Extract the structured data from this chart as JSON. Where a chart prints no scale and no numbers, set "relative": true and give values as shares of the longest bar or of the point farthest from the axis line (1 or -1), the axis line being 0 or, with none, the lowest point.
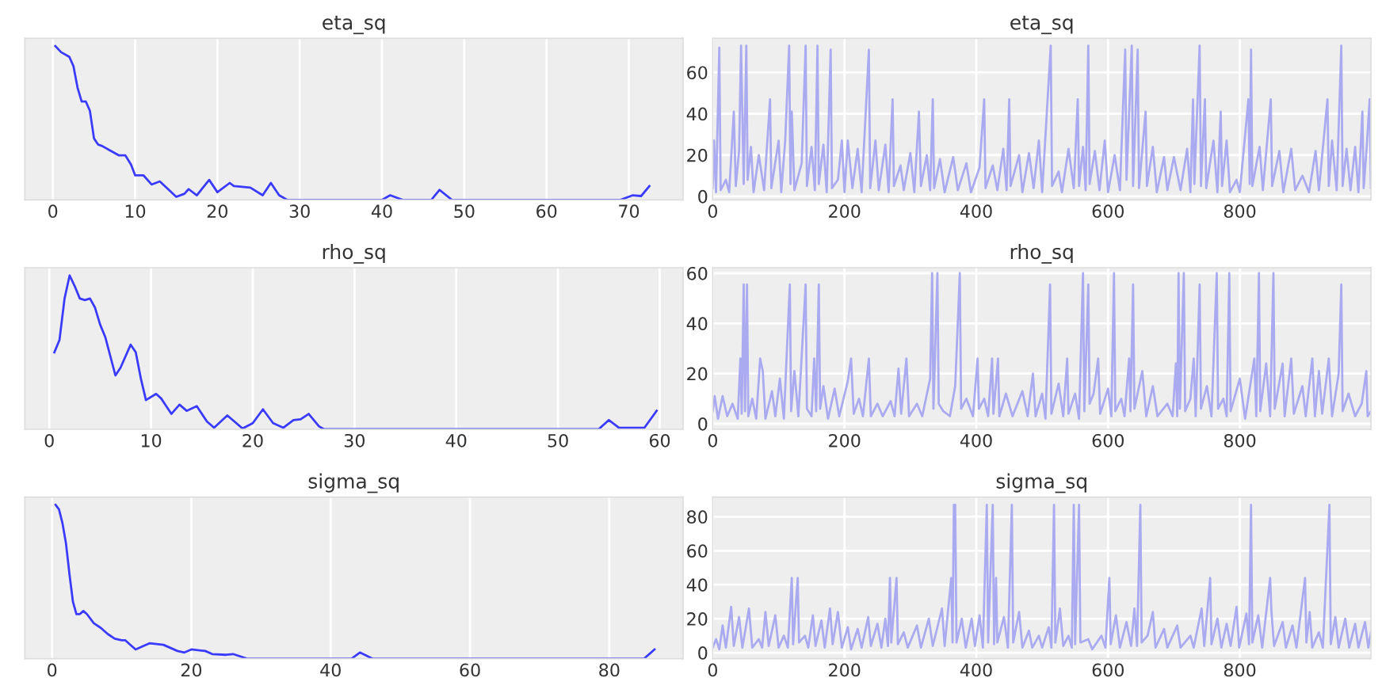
{
  "chart_data": [
    {
      "type": "line",
      "title": "eta_sq",
      "relative": true,
      "tick_labels": "x",
      "grid": "x",
      "xlim": [
        -3.4,
        76.6
      ],
      "xticks": [
        0,
        10,
        20,
        30,
        40,
        50,
        60,
        70
      ],
      "series": [
        {
          "color": "#3b3bff",
          "x": [
            0.3,
            1,
            2,
            2.5,
            3,
            3.5,
            4,
            4.5,
            5,
            5.5,
            6,
            7,
            8,
            8.8,
            9.5,
            10,
            11,
            12,
            13,
            14,
            15,
            16,
            16.5,
            17.5,
            19,
            20,
            21.5,
            22,
            24,
            25.5,
            26.5,
            27.5,
            28.5,
            40,
            41,
            42.5,
            46,
            47,
            48.5,
            69,
            70.5,
            71.5,
            72.5
          ],
          "values": [
            1.0,
            0.96,
            0.93,
            0.87,
            0.73,
            0.64,
            0.64,
            0.58,
            0.4,
            0.36,
            0.35,
            0.32,
            0.29,
            0.29,
            0.23,
            0.16,
            0.16,
            0.1,
            0.12,
            0.07,
            0.02,
            0.04,
            0.07,
            0.03,
            0.13,
            0.05,
            0.11,
            0.09,
            0.08,
            0.03,
            0.11,
            0.03,
            0,
            0,
            0.03,
            0,
            0,
            0.065,
            0,
            0,
            0.03,
            0.025,
            0.09
          ]
        }
      ]
    },
    {
      "type": "line",
      "title": "eta_sq",
      "grid": true,
      "xlim": [
        0,
        999
      ],
      "xticks": [
        0,
        200,
        400,
        600,
        800
      ],
      "ylim": [
        -1.7,
        76.5
      ],
      "yticks": [
        0,
        20,
        40,
        60
      ],
      "series": [
        {
          "color": "#aaaaf0",
          "x": [
            0,
            2,
            5,
            10,
            12,
            20,
            25,
            32,
            35,
            40,
            43,
            47,
            51,
            53,
            58,
            62,
            70,
            78,
            87,
            89,
            100,
            104,
            110,
            116,
            118,
            120,
            124,
            135,
            141,
            143,
            150,
            155,
            159,
            161,
            168,
            173,
            179,
            181,
            190,
            196,
            200,
            205,
            212,
            220,
            226,
            237,
            239,
            247,
            252,
            262,
            267,
            273,
            275,
            285,
            290,
            300,
            306,
            313,
            316,
            325,
            330,
            334,
            336,
            345,
            352,
            365,
            372,
            385,
            392,
            405,
            412,
            414,
            425,
            432,
            441,
            446,
            450,
            452,
            465,
            470,
            480,
            487,
            495,
            500,
            513,
            515,
            525,
            530,
            540,
            548,
            554,
            556,
            562,
            566,
            570,
            572,
            580,
            587,
            595,
            600,
            610,
            618,
            626,
            628,
            636,
            638,
            645,
            647,
            657,
            659,
            668,
            674,
            685,
            690,
            700,
            710,
            720,
            725,
            729,
            731,
            739,
            741,
            747,
            749,
            760,
            766,
            771,
            773,
            780,
            785,
            795,
            800,
            813,
            815,
            817,
            819,
            830,
            835,
            847,
            849,
            860,
            866,
            878,
            884,
            895,
            905,
            915,
            920,
            933,
            935,
            940,
            947,
            954,
            956,
            962,
            968,
            975,
            980,
            986,
            988,
            993,
            997,
            999
          ],
          "values": [
            4,
            27,
            2,
            72,
            3,
            8,
            2,
            41,
            5,
            22,
            73,
            6,
            73,
            8,
            24,
            2,
            20,
            3,
            47,
            4,
            27,
            2,
            27,
            73,
            6,
            41,
            3,
            16,
            73,
            5,
            24,
            3,
            73,
            6,
            25,
            2,
            71,
            4,
            8,
            27,
            2,
            27,
            4,
            23,
            2,
            71,
            4,
            27,
            3,
            25,
            2,
            47,
            5,
            15,
            3,
            21,
            2,
            41,
            5,
            20,
            3,
            47,
            4,
            18,
            2,
            19,
            3,
            16,
            2,
            14,
            47,
            4,
            15,
            3,
            23,
            3,
            47,
            5,
            20,
            2,
            21,
            4,
            27,
            2,
            73,
            5,
            12,
            2,
            23,
            4,
            47,
            5,
            24,
            3,
            73,
            6,
            22,
            3,
            27,
            2,
            20,
            3,
            71,
            8,
            73,
            5,
            71,
            4,
            41,
            5,
            24,
            2,
            19,
            3,
            19,
            3,
            23,
            2,
            47,
            6,
            73,
            5,
            47,
            4,
            27,
            2,
            41,
            5,
            27,
            2,
            8,
            2,
            47,
            6,
            71,
            5,
            24,
            3,
            47,
            5,
            22,
            2,
            23,
            3,
            10,
            2,
            22,
            3,
            47,
            5,
            27,
            3,
            73,
            5,
            23,
            3,
            24,
            2,
            41,
            4,
            26,
            47,
            4
          ]
        }
      ]
    },
    {
      "type": "line",
      "title": "rho_sq",
      "relative": true,
      "tick_labels": "x",
      "grid": "x",
      "xlim": [
        -2.4,
        62.3
      ],
      "xticks": [
        0,
        10,
        20,
        30,
        40,
        50,
        60
      ],
      "series": [
        {
          "color": "#3b3bff",
          "x": [
            0.5,
            1,
            1.5,
            2,
            2.5,
            3,
            3.5,
            4,
            4.5,
            5,
            5.5,
            6.5,
            7,
            8,
            8.5,
            9,
            9.5,
            10.5,
            11,
            12,
            12.8,
            13.5,
            14.5,
            15.5,
            16.2,
            17.5,
            18.2,
            19,
            20,
            21,
            22,
            23,
            24,
            24.7,
            25.5,
            26.5,
            27,
            54,
            55,
            56,
            58.5,
            59.7
          ],
          "values": [
            0.5,
            0.58,
            0.85,
            1.0,
            0.93,
            0.85,
            0.84,
            0.85,
            0.79,
            0.68,
            0.6,
            0.35,
            0.4,
            0.55,
            0.5,
            0.33,
            0.19,
            0.23,
            0.2,
            0.1,
            0.16,
            0.12,
            0.15,
            0.05,
            0.01,
            0.09,
            0.05,
            0.005,
            0.04,
            0.13,
            0.04,
            0.01,
            0.06,
            0.065,
            0.1,
            0.02,
            0,
            0,
            0.06,
            0.01,
            0.01,
            0.12
          ]
        }
      ]
    },
    {
      "type": "line",
      "title": "rho_sq",
      "grid": true,
      "xlim": [
        0,
        999
      ],
      "xticks": [
        0,
        200,
        400,
        600,
        800
      ],
      "ylim": [
        -2.2,
        62.2
      ],
      "yticks": [
        0,
        20,
        40,
        60
      ],
      "series": [
        {
          "color": "#aaaaf0",
          "x": [
            0,
            3,
            8,
            15,
            22,
            30,
            38,
            42,
            44,
            47,
            49,
            52,
            54,
            60,
            66,
            72,
            76,
            80,
            90,
            95,
            102,
            108,
            117,
            119,
            124,
            130,
            141,
            143,
            150,
            154,
            157,
            161,
            163,
            168,
            175,
            185,
            192,
            205,
            210,
            214,
            222,
            228,
            237,
            240,
            250,
            258,
            270,
            276,
            282,
            286,
            294,
            298,
            310,
            318,
            330,
            333,
            335,
            341,
            343,
            350,
            360,
            368,
            375,
            377,
            385,
            395,
            402,
            404,
            412,
            418,
            424,
            426,
            433,
            435,
            445,
            455,
            470,
            478,
            486,
            490,
            500,
            505,
            512,
            514,
            525,
            532,
            538,
            540,
            550,
            556,
            562,
            564,
            570,
            572,
            578,
            585,
            588,
            600,
            605,
            609,
            611,
            620,
            625,
            632,
            634,
            638,
            640,
            652,
            658,
            668,
            675,
            690,
            698,
            703,
            705,
            707,
            709,
            715,
            717,
            725,
            730,
            733,
            739,
            741,
            750,
            757,
            765,
            767,
            775,
            780,
            784,
            786,
            800,
            808,
            822,
            825,
            829,
            831,
            840,
            846,
            851,
            853,
            865,
            868,
            878,
            882,
            895,
            900,
            910,
            914,
            920,
            925,
            935,
            940,
            950,
            954,
            956,
            965,
            975,
            985,
            992,
            994,
            999
          ],
          "values": [
            5,
            11,
            2,
            11,
            3,
            8,
            2,
            26,
            4,
            55.5,
            5,
            55.5,
            3,
            10,
            2,
            26,
            21,
            2,
            13,
            3,
            18,
            2,
            55.5,
            5,
            21,
            3,
            55.5,
            6,
            3,
            26,
            5,
            55.5,
            6,
            15,
            2,
            14,
            3,
            17,
            26,
            4,
            10,
            3,
            26,
            3,
            8,
            3,
            9,
            3,
            22,
            4,
            26,
            3,
            8,
            3,
            18,
            60,
            6,
            60,
            8,
            5,
            3,
            15,
            60,
            6,
            10,
            3,
            26,
            6,
            10,
            3,
            26,
            4,
            26,
            3,
            12,
            3,
            13,
            3,
            20,
            3,
            12,
            2,
            55.5,
            4,
            16,
            3,
            26,
            4,
            12,
            2,
            60,
            5,
            55.5,
            8,
            12,
            26,
            4,
            14,
            3,
            60,
            5,
            10,
            3,
            26,
            5,
            55.5,
            6,
            21,
            3,
            15,
            3,
            8,
            3,
            24,
            3,
            60,
            6,
            60,
            5,
            10,
            26,
            3,
            55.5,
            6,
            15,
            3,
            60,
            6,
            10,
            3,
            60,
            5,
            18,
            2,
            26,
            3,
            60,
            5,
            24,
            3,
            60,
            6,
            24,
            3,
            26,
            4,
            15,
            3,
            26,
            3,
            21,
            4,
            26,
            3,
            20,
            55.5,
            5,
            12,
            3,
            8,
            21,
            3,
            5
          ]
        }
      ]
    },
    {
      "type": "line",
      "title": "sigma_sq",
      "relative": true,
      "tick_labels": "x",
      "grid": "x",
      "xlim": [
        -3.9,
        90.6
      ],
      "xticks": [
        0,
        20,
        40,
        60,
        80
      ],
      "series": [
        {
          "color": "#3b3bff",
          "x": [
            0.5,
            1,
            1.5,
            2,
            2.5,
            3,
            3.5,
            4,
            4.5,
            5,
            6,
            7,
            8,
            9,
            10,
            10.5,
            11,
            12,
            13,
            14,
            16,
            18,
            19,
            20,
            22,
            23,
            25,
            26,
            28,
            43,
            44.2,
            46,
            85,
            86.5
          ],
          "values": [
            1.0,
            0.97,
            0.88,
            0.75,
            0.55,
            0.37,
            0.29,
            0.29,
            0.31,
            0.29,
            0.23,
            0.2,
            0.16,
            0.13,
            0.12,
            0.12,
            0.1,
            0.06,
            0.08,
            0.1,
            0.09,
            0.05,
            0.04,
            0.06,
            0.05,
            0.03,
            0.025,
            0.03,
            0,
            0,
            0.04,
            0,
            0,
            0.06
          ]
        }
      ]
    },
    {
      "type": "line",
      "title": "sigma_sq",
      "grid": true,
      "xlim": [
        0,
        999
      ],
      "xticks": [
        0,
        200,
        400,
        600,
        800
      ],
      "ylim": [
        -3.5,
        91.5
      ],
      "yticks": [
        0,
        20,
        40,
        60,
        80
      ],
      "series": [
        {
          "color": "#aaaaf0",
          "x": [
            0,
            5,
            10,
            15,
            20,
            28,
            32,
            40,
            45,
            55,
            60,
            70,
            75,
            80,
            85,
            95,
            100,
            108,
            114,
            120,
            122,
            129,
            131,
            140,
            145,
            152,
            156,
            165,
            170,
            178,
            182,
            190,
            196,
            205,
            210,
            220,
            226,
            236,
            240,
            250,
            256,
            262,
            266,
            269,
            271,
            279,
            281,
            290,
            296,
            310,
            316,
            328,
            334,
            348,
            352,
            362,
            364,
            366,
            368,
            370,
            378,
            384,
            393,
            398,
            405,
            410,
            416,
            418,
            425,
            427,
            430,
            432,
            442,
            448,
            454,
            456,
            465,
            470,
            480,
            485,
            495,
            500,
            510,
            514,
            518,
            520,
            527,
            532,
            540,
            545,
            548,
            550,
            556,
            558,
            570,
            576,
            590,
            596,
            602,
            604,
            612,
            618,
            628,
            635,
            640,
            644,
            649,
            651,
            660,
            668,
            672,
            685,
            690,
            705,
            710,
            725,
            730,
            742,
            746,
            755,
            757,
            766,
            772,
            780,
            786,
            795,
            799,
            810,
            814,
            817,
            819,
            828,
            834,
            846,
            848,
            852,
            865,
            870,
            880,
            886,
            899,
            901,
            906,
            910,
            920,
            926,
            936,
            938,
            945,
            950,
            960,
            966,
            975,
            980,
            990,
            995,
            999
          ],
          "values": [
            3,
            8,
            2,
            16,
            3,
            27,
            4,
            21,
            3,
            26,
            3,
            8,
            3,
            24,
            4,
            22,
            3,
            10,
            3,
            44,
            5,
            44,
            6,
            10,
            3,
            22,
            4,
            19,
            3,
            26,
            5,
            24,
            3,
            15,
            2,
            14,
            3,
            21,
            4,
            17,
            3,
            20,
            4,
            44,
            6,
            44,
            5,
            12,
            3,
            16,
            3,
            20,
            4,
            26,
            4,
            44,
            6,
            87,
            87,
            6,
            20,
            3,
            20,
            4,
            22,
            3,
            87,
            6,
            87,
            5,
            44,
            6,
            21,
            3,
            87,
            6,
            24,
            3,
            13,
            3,
            10,
            3,
            15,
            3,
            87,
            6,
            26,
            4,
            10,
            3,
            87,
            5,
            87,
            6,
            8,
            2,
            10,
            3,
            44,
            5,
            22,
            3,
            18,
            4,
            26,
            4,
            87,
            6,
            10,
            24,
            3,
            14,
            3,
            16,
            3,
            10,
            3,
            26,
            4,
            44,
            5,
            20,
            3,
            17,
            4,
            27,
            3,
            23,
            5,
            87,
            6,
            22,
            3,
            44,
            24,
            4,
            18,
            3,
            16,
            3,
            44,
            6,
            24,
            3,
            12,
            3,
            87,
            5,
            21,
            3,
            20,
            3,
            17,
            3,
            18,
            3,
            12
          ]
        }
      ]
    }
  ]
}
